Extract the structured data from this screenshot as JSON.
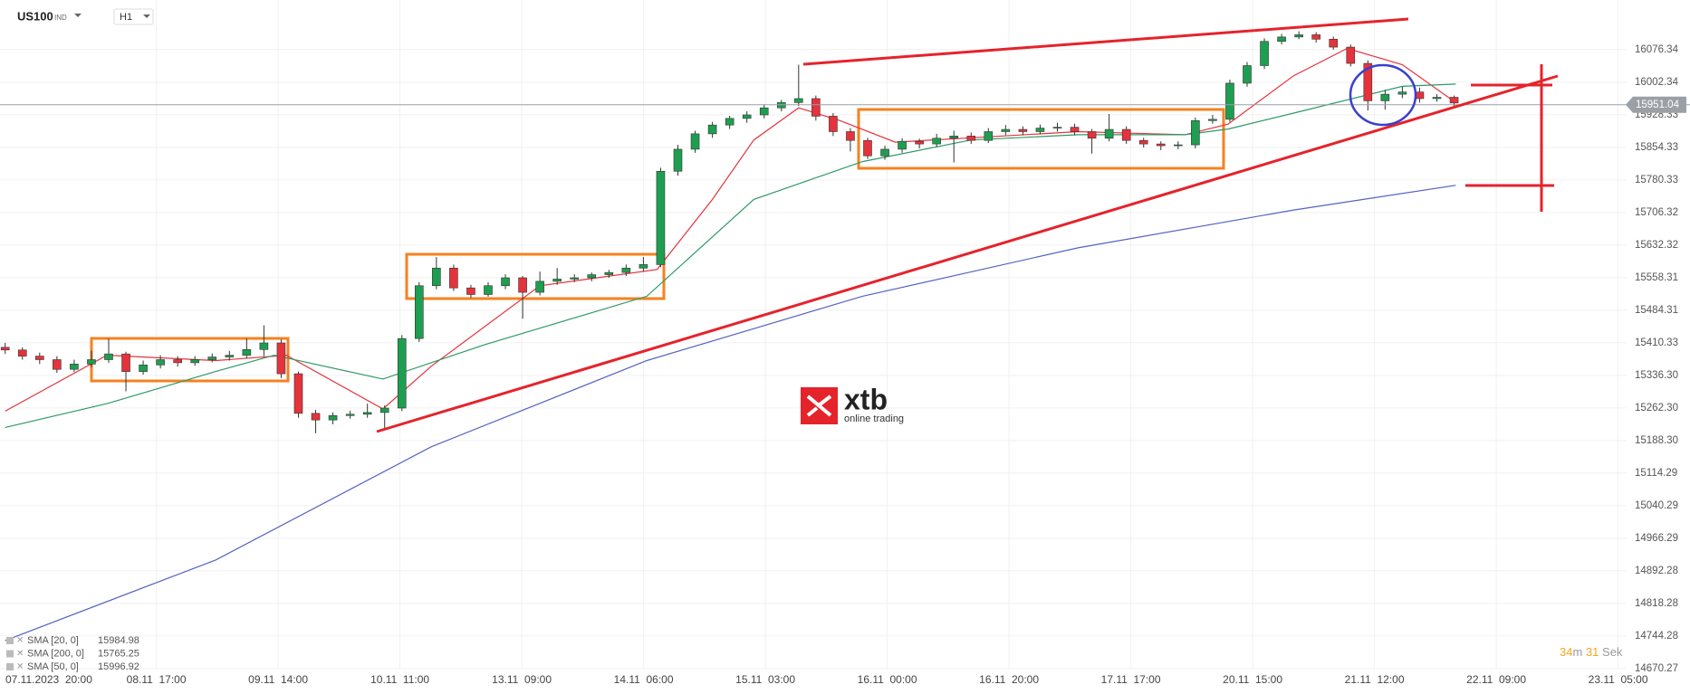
{
  "header": {
    "symbol": "US100",
    "market": "IND",
    "interval": "H1"
  },
  "watermark": {
    "brand": "xtb",
    "tagline": "online trading"
  },
  "countdown": {
    "minutes": "34",
    "minutes_unit": "m",
    "seconds": "31",
    "seconds_unit": "Sek"
  },
  "chart_data": {
    "type": "candlestick",
    "ylim": [
      14668,
      16189
    ],
    "xlim": [
      -0.3,
      94
    ],
    "yticks": [
      16076.34,
      16002.34,
      15928.33,
      15854.33,
      15780.33,
      15706.32,
      15632.32,
      15558.31,
      15484.31,
      15410.33,
      {
        "value": 15336.3,
        "label": "15336.30"
      },
      {
        "value": 15262.3,
        "label": "15262.30"
      },
      {
        "value": 15188.3,
        "label": "15188.30"
      },
      15114.29,
      15040.29,
      14966.29,
      14892.28,
      14818.28,
      14744.28,
      14670.27
    ],
    "x_labels": [
      "07.11.2023  20:00",
      "08.11  17:00",
      "09.11  14:00",
      "10.11  11:00",
      "13.11  09:00",
      "14.11  06:00",
      "15.11  03:00",
      "16.11  00:00",
      "16.11  20:00",
      "17.11  17:00",
      "20.11  15:00",
      "21.11  12:00",
      "22.11  09:00",
      "23.11  05:00"
    ],
    "up_color": "#1e9e50",
    "down_color": "#e5333c",
    "current_price": 15951.04,
    "candles": [
      [
        15400,
        15410,
        15385,
        15394
      ],
      [
        15394,
        15400,
        15372,
        15380
      ],
      [
        15380,
        15388,
        15362,
        15372
      ],
      [
        15372,
        15380,
        15342,
        15350
      ],
      [
        15350,
        15372,
        15344,
        15362
      ],
      [
        15362,
        15392,
        15355,
        15372
      ],
      [
        15372,
        15420,
        15365,
        15385
      ],
      [
        15385,
        15390,
        15300,
        15345
      ],
      [
        15345,
        15370,
        15338,
        15360
      ],
      [
        15360,
        15382,
        15352,
        15372
      ],
      [
        15372,
        15380,
        15356,
        15365
      ],
      [
        15365,
        15380,
        15358,
        15372
      ],
      [
        15372,
        15386,
        15366,
        15378
      ],
      [
        15378,
        15392,
        15370,
        15382
      ],
      [
        15382,
        15420,
        15375,
        15395
      ],
      [
        15395,
        15450,
        15380,
        15410
      ],
      [
        15410,
        15418,
        15330,
        15340
      ],
      [
        15340,
        15345,
        15240,
        15250
      ],
      [
        15250,
        15258,
        15205,
        15235
      ],
      [
        15235,
        15252,
        15225,
        15245
      ],
      [
        15245,
        15256,
        15238,
        15248
      ],
      [
        15248,
        15272,
        15240,
        15252
      ],
      [
        15252,
        15268,
        15215,
        15262
      ],
      [
        15262,
        15428,
        15255,
        15420
      ],
      [
        15420,
        15548,
        15412,
        15540
      ],
      [
        15540,
        15605,
        15532,
        15580
      ],
      [
        15580,
        15588,
        15528,
        15535
      ],
      [
        15535,
        15542,
        15512,
        15520
      ],
      [
        15520,
        15548,
        15515,
        15540
      ],
      [
        15540,
        15566,
        15532,
        15558
      ],
      [
        15558,
        15562,
        15465,
        15525
      ],
      [
        15525,
        15572,
        15518,
        15550
      ],
      [
        15550,
        15580,
        15542,
        15555
      ],
      [
        15555,
        15566,
        15548,
        15558
      ],
      [
        15558,
        15570,
        15550,
        15565
      ],
      [
        15565,
        15576,
        15558,
        15570
      ],
      [
        15570,
        15588,
        15562,
        15580
      ],
      [
        15580,
        15605,
        15572,
        15588
      ],
      [
        15588,
        15808,
        15582,
        15800
      ],
      [
        15800,
        15860,
        15790,
        15850
      ],
      [
        15850,
        15892,
        15842,
        15885
      ],
      [
        15885,
        15912,
        15876,
        15905
      ],
      [
        15905,
        15926,
        15896,
        15920
      ],
      [
        15920,
        15936,
        15910,
        15928
      ],
      [
        15928,
        15952,
        15920,
        15944
      ],
      [
        15944,
        15962,
        15936,
        15956
      ],
      [
        15956,
        16042,
        15948,
        15965
      ],
      [
        15965,
        15972,
        15915,
        15925
      ],
      [
        15925,
        15932,
        15880,
        15890
      ],
      [
        15890,
        15898,
        15845,
        15870
      ],
      [
        15870,
        15876,
        15828,
        15835
      ],
      [
        15835,
        15858,
        15826,
        15850
      ],
      [
        15850,
        15875,
        15842,
        15868
      ],
      [
        15868,
        15874,
        15852,
        15862
      ],
      [
        15862,
        15885,
        15855,
        15875
      ],
      [
        15875,
        15892,
        15820,
        15880
      ],
      [
        15880,
        15888,
        15862,
        15870
      ],
      [
        15870,
        15898,
        15864,
        15890
      ],
      [
        15890,
        15905,
        15882,
        15895
      ],
      [
        15895,
        15902,
        15882,
        15890
      ],
      [
        15890,
        15906,
        15884,
        15898
      ],
      [
        15898,
        15910,
        15890,
        15900
      ],
      [
        15900,
        15908,
        15882,
        15890
      ],
      [
        15890,
        15896,
        15840,
        15875
      ],
      [
        15875,
        15930,
        15868,
        15895
      ],
      [
        15895,
        15902,
        15862,
        15870
      ],
      [
        15870,
        15876,
        15854,
        15862
      ],
      [
        15862,
        15868,
        15848,
        15858
      ],
      [
        15858,
        15868,
        15850,
        15860
      ],
      [
        15860,
        15922,
        15852,
        15915
      ],
      [
        15915,
        15928,
        15908,
        15918
      ],
      [
        15918,
        16008,
        15912,
        16000
      ],
      [
        16000,
        16048,
        15992,
        16040
      ],
      [
        16040,
        16102,
        16032,
        16095
      ],
      [
        16095,
        16112,
        16088,
        16105
      ],
      [
        16105,
        16118,
        16100,
        16110
      ],
      [
        16110,
        16116,
        16092,
        16100
      ],
      [
        16100,
        16106,
        16076,
        16082
      ],
      [
        16082,
        16088,
        16038,
        16045
      ],
      [
        16045,
        16052,
        15938,
        15960
      ],
      [
        15960,
        15985,
        15940,
        15975
      ],
      [
        15975,
        15992,
        15966,
        15980
      ],
      [
        15980,
        15990,
        15956,
        15965
      ],
      [
        15965,
        15975,
        15958,
        15968
      ],
      [
        15968,
        15972,
        15948,
        15955
      ]
    ],
    "series": [
      {
        "name": "SMA [20, 0]",
        "last": 15984.98,
        "color": "#e5333c",
        "x": [
          0,
          5.9,
          12.2,
          16.3,
          21.9,
          24.7,
          31,
          37.8,
          41,
          43.4,
          46,
          48.4,
          51.6,
          56,
          62.2,
          68.4,
          70.9,
          74.7,
          77.8,
          81,
          84.1
        ],
        "values": [
          15255,
          15382,
          15370,
          15382,
          15260,
          15357,
          15540,
          15577,
          15736,
          15871,
          15944,
          15915,
          15866,
          15876,
          15890,
          15883,
          15907,
          16017,
          16079,
          16042,
          15956
        ]
      },
      {
        "name": "SMA [200, 0]",
        "last": 15765.25,
        "color": "#5563c1",
        "x": [
          0,
          12.2,
          24.7,
          37.2,
          49.7,
          62.2,
          74.7,
          84.1
        ],
        "values": [
          14734,
          14917,
          15174,
          15370,
          15516,
          15626,
          15712,
          15768
        ]
      },
      {
        "name": "SMA [50, 0]",
        "last": 15996.92,
        "color": "#2e9a66",
        "x": [
          0,
          5.9,
          12.2,
          15.6,
          21.9,
          27.8,
          37.2,
          43.4,
          49.7,
          56,
          62.2,
          68.4,
          70.9,
          74.7,
          81,
          84.1
        ],
        "values": [
          15218,
          15272,
          15345,
          15382,
          15328,
          15406,
          15516,
          15736,
          15822,
          15871,
          15883,
          15883,
          15896,
          15932,
          15993,
          15998
        ]
      }
    ]
  }
}
